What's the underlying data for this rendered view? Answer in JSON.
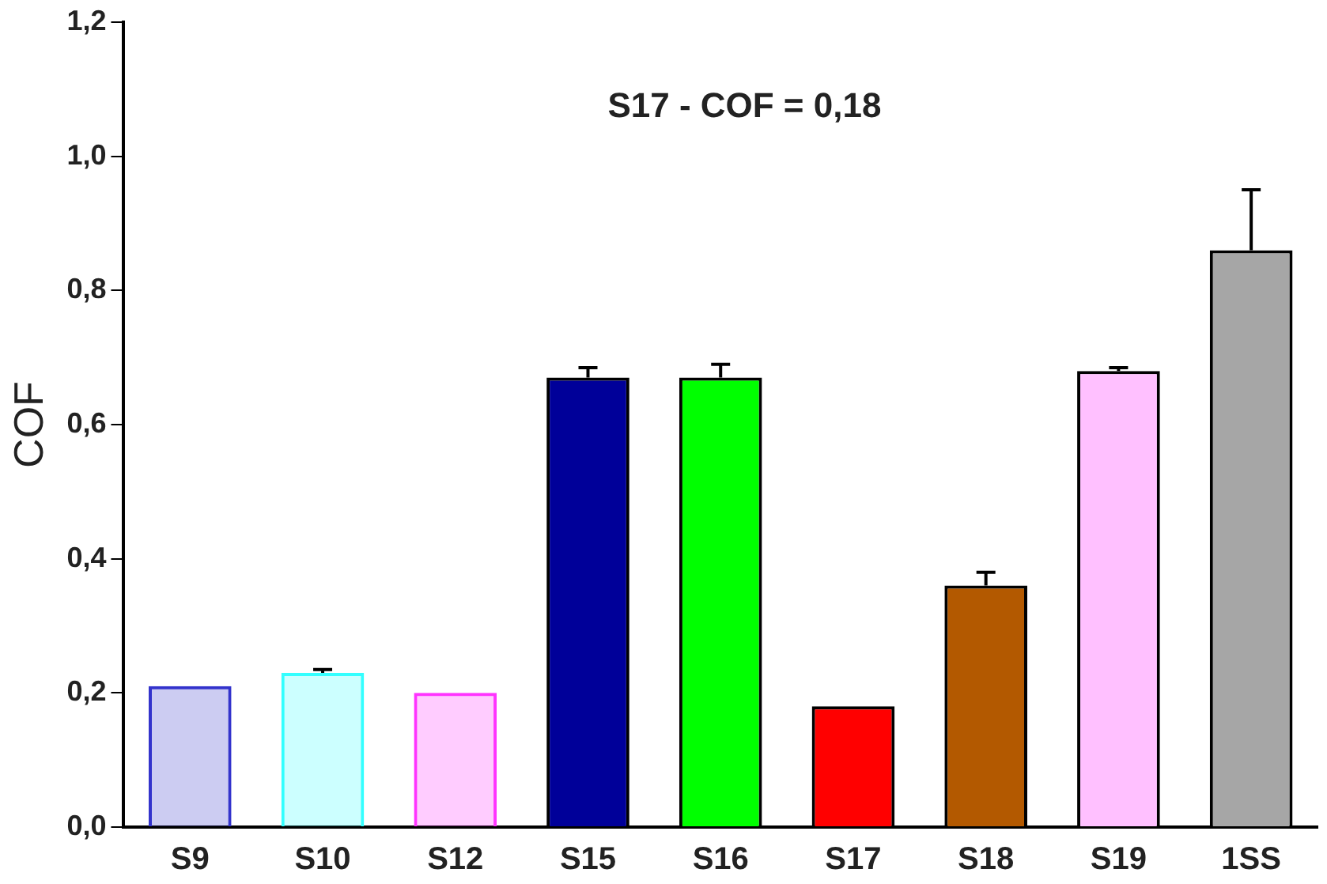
{
  "chart_data": {
    "type": "bar",
    "ylabel": "COF",
    "categories": [
      "S9",
      "S10",
      "S12",
      "S15",
      "S16",
      "S17",
      "S18",
      "S19",
      "1SS"
    ],
    "values": [
      0.21,
      0.23,
      0.2,
      0.67,
      0.67,
      0.18,
      0.36,
      0.68,
      0.86
    ],
    "colors": [
      "#3333cc",
      "#33ffff",
      "#ff33ff",
      "#000099",
      "#00ff00",
      "#ff0000",
      "#b35900",
      "#ffc0ff",
      "#a6a6a6"
    ],
    "errors": [
      null,
      [
        0.23,
        0.235
      ],
      null,
      [
        0.67,
        0.685
      ],
      [
        0.67,
        0.69
      ],
      null,
      [
        0.36,
        0.38
      ],
      [
        0.68,
        0.685
      ],
      [
        0.86,
        0.95
      ]
    ],
    "ylim": [
      0,
      1.2
    ],
    "yticks": [
      {
        "value": 0,
        "label": "0,0"
      },
      {
        "value": 0.2,
        "label": "0,2"
      },
      {
        "value": 0.4,
        "label": "0,4"
      },
      {
        "value": 0.6,
        "label": "0,6"
      },
      {
        "value": 0.8,
        "label": "0,8"
      },
      {
        "value": 1,
        "label": "1,0"
      },
      {
        "value": 1.2,
        "label": "1,2"
      }
    ],
    "annotations": [
      "S17 - COF = 0,18"
    ],
    "grid": false,
    "legend": false
  }
}
